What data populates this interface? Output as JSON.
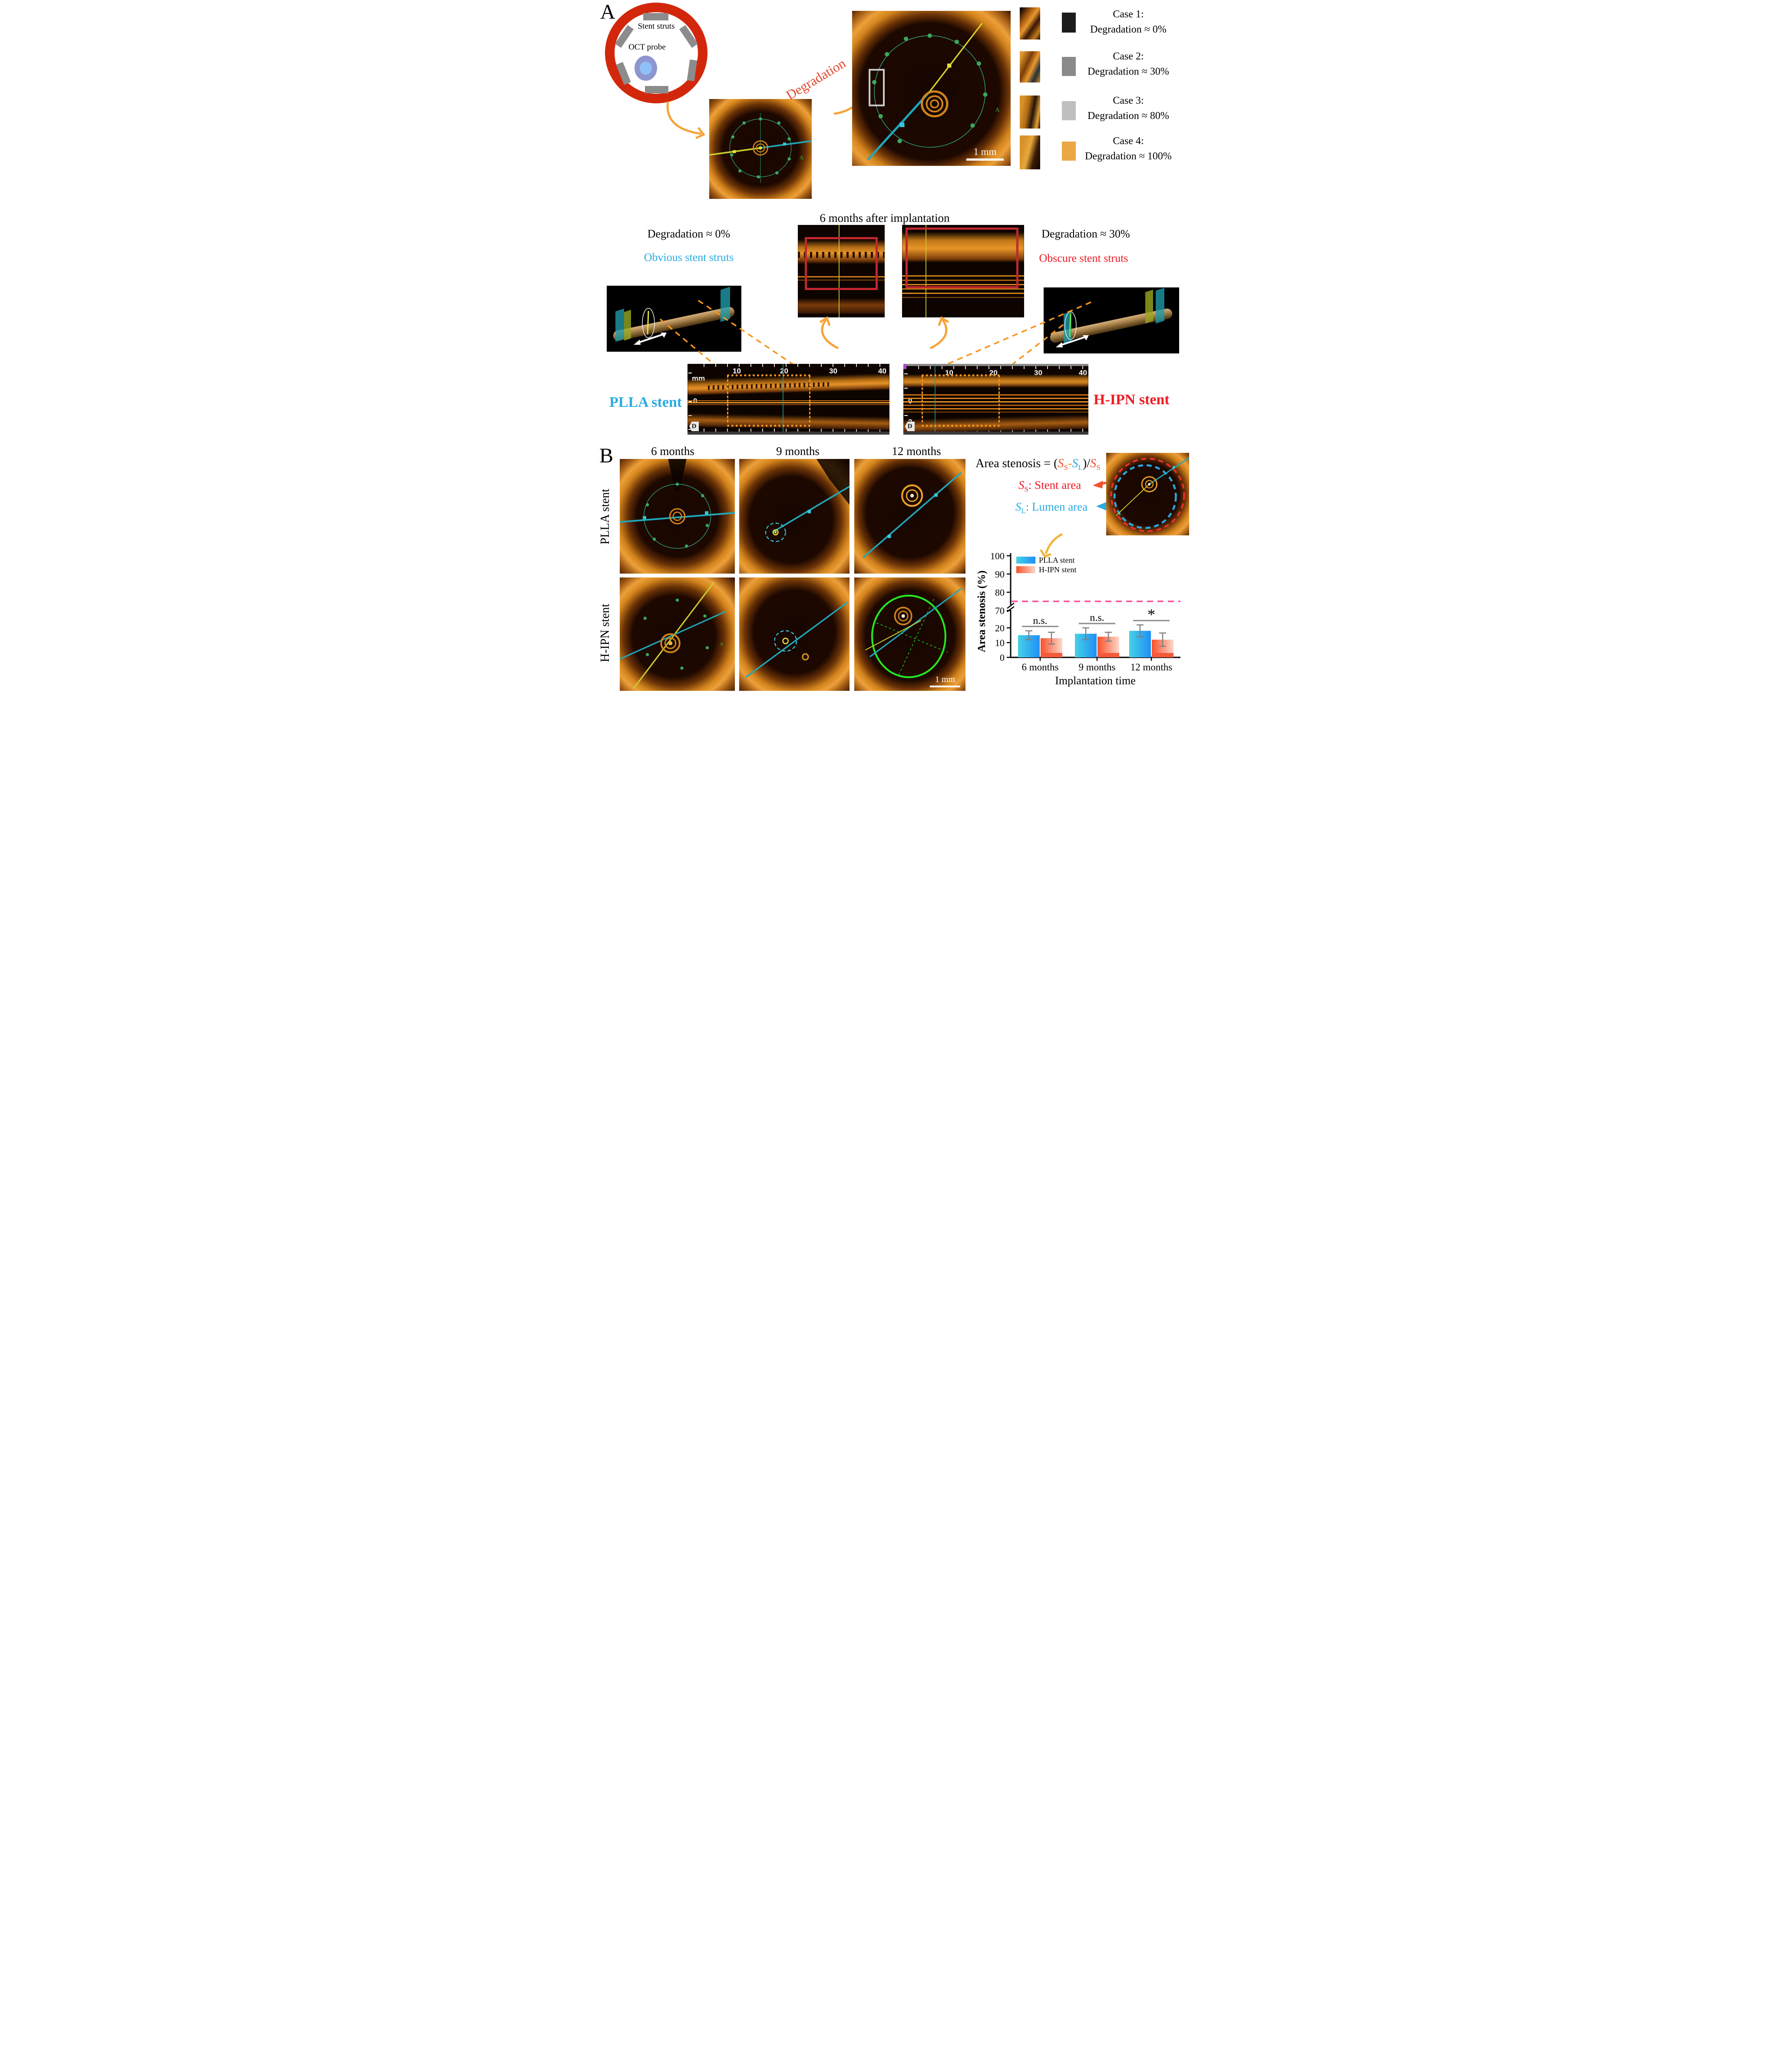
{
  "panel_a": {
    "label": "A",
    "schematic": {
      "stent_struts_label": "Stent struts",
      "oct_probe_label": "OCT probe",
      "vessel_color": "#d2270b",
      "strut_color": "#8c8c8c"
    },
    "degradation_label": "Degradation",
    "degradation_label_color": "#e2482e",
    "scale_bar_label": "1 mm",
    "orientation_marker": "A",
    "cases": [
      {
        "title": "Case 1:",
        "subtitle": "Degradation ≈ 0%",
        "swatch_color": "#1c1c1c"
      },
      {
        "title": "Case 2:",
        "subtitle": "Degradation ≈ 30%",
        "swatch_color": "#8a8a8a"
      },
      {
        "title": "Case 3:",
        "subtitle": "Degradation ≈ 80%",
        "swatch_color": "#bfbfbf"
      },
      {
        "title": "Case 4:",
        "subtitle": "Degradation ≈ 100%",
        "swatch_color": "#eaa844"
      }
    ]
  },
  "mid_section": {
    "title": "6 months after implantation",
    "left_note": "Degradation ≈ 0%",
    "left_sub": "Obvious stent struts",
    "left_sub_color": "#29abe2",
    "right_note": "Degradation ≈ 30%",
    "right_sub": "Obscure stent struts",
    "right_sub_color": "#ed1c24",
    "plla_label": "PLLA stent",
    "plla_label_color": "#29abe2",
    "hipn_label": "H-IPN stent",
    "hipn_label_color": "#ed1c24",
    "ruler": {
      "unit": "mm",
      "ticks": [
        "10",
        "20",
        "30",
        "40"
      ],
      "left_ticks": [
        "0",
        "2"
      ],
      "direction_marker": "D"
    }
  },
  "panel_b": {
    "label": "B",
    "columns": [
      "6 months",
      "9 months",
      "12 months"
    ],
    "rows": [
      "PLLA stent",
      "H-IPN stent"
    ],
    "scale_bar_label": "1 mm",
    "formula": {
      "lead": "Area stenosis = (",
      "s1": "S",
      "s1_sub": "S",
      "minus": "-",
      "s2": "S",
      "s2_sub": "L",
      "mid": ")/",
      "s3": "S",
      "s3_sub": "S"
    },
    "stent_area": {
      "s": "S",
      "sub": "S",
      "rest": ": Stent area",
      "color": "#ed1c24"
    },
    "lumen_area": {
      "s": "S",
      "sub": "L",
      "rest": ": Lumen area",
      "color": "#29abe2"
    }
  },
  "chart_data": {
    "type": "bar",
    "categories": [
      "6 months",
      "9 months",
      "12 months"
    ],
    "series": [
      {
        "name": "PLLA stent",
        "values": [
          15,
          16,
          18
        ],
        "errors": [
          3,
          4,
          4
        ],
        "gradient": [
          "#45d1e6",
          "#1f8ff6"
        ]
      },
      {
        "name": "H-IPN stent",
        "values": [
          13,
          14,
          12
        ],
        "errors": [
          4,
          3,
          4.5
        ],
        "gradient": [
          "#f8502a",
          "#fcd8ca"
        ],
        "base_band_color": "#f4593a",
        "base_band_value": 3
      }
    ],
    "ylabel": "Area stenosis (%)",
    "xlabel": "Implantation time",
    "yticks": [
      0,
      10,
      20,
      70,
      80,
      90,
      100
    ],
    "ylim": [
      0,
      100
    ],
    "axis_break_between": [
      20,
      70
    ],
    "reference_line": {
      "value": 75,
      "color": "#fb4d9d",
      "style": "dashed"
    },
    "significance": [
      "n.s.",
      "n.s.",
      "*"
    ],
    "legend_position": "top-left",
    "error_bar_color": "#7f7f7f",
    "grid": false
  }
}
